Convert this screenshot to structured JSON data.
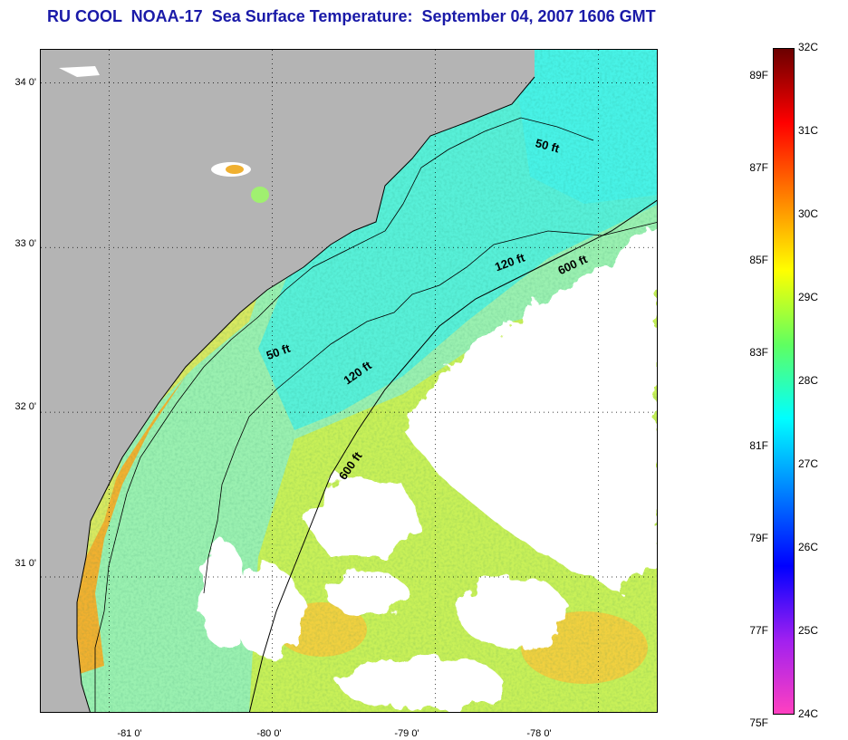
{
  "title": "RU COOL  NOAA-17  Sea Surface Temperature:  September 04, 2007 1606 GMT",
  "map": {
    "lat_labels": [
      "34 0'",
      "33 0'",
      "32 0'",
      "31 0'"
    ],
    "lon_labels": [
      "-81 0'",
      "-80 0'",
      "-79 0'",
      "-78 0'"
    ],
    "lat_values": [
      34,
      33,
      32,
      31
    ],
    "lon_values": [
      -81,
      -80,
      -79,
      -78
    ],
    "lon_range": [
      -81.42,
      -77.63
    ],
    "lat_range": [
      30.17,
      34.2
    ],
    "contours": [
      {
        "label": "50 ft",
        "depth_ft": 50
      },
      {
        "label": "50 ft",
        "depth_ft": 50
      },
      {
        "label": "120 ft",
        "depth_ft": 120
      },
      {
        "label": "120 ft",
        "depth_ft": 120
      },
      {
        "label": "600 ft",
        "depth_ft": 600
      },
      {
        "label": "600 ft",
        "depth_ft": 600
      }
    ],
    "colors": {
      "land": "#b4b4b4",
      "cloud": "#ffffff",
      "nearshore_warm": "#f0a020",
      "shelf_green": "#7fe8a0",
      "offshore_cyan": "#40f0e0",
      "offshore_yellowgreen": "#c8f050"
    }
  },
  "colorbar": {
    "f_labels": [
      "89F",
      "87F",
      "85F",
      "83F",
      "81F",
      "79F",
      "77F",
      "75F"
    ],
    "c_labels": [
      "32C",
      "31C",
      "30C",
      "29C",
      "28C",
      "27C",
      "26C",
      "25C",
      "24C"
    ],
    "f_values": [
      89,
      87,
      85,
      83,
      81,
      79,
      77,
      75
    ],
    "c_values": [
      32,
      31,
      30,
      29,
      28,
      27,
      26,
      25,
      24
    ],
    "range_c": [
      24,
      32
    ],
    "gradient_stops": [
      "#6b0000",
      "#ff0000",
      "#ff8000",
      "#ffff00",
      "#60ff60",
      "#00ffff",
      "#0080ff",
      "#0000ff",
      "#a020f0",
      "#ff40c0"
    ]
  }
}
